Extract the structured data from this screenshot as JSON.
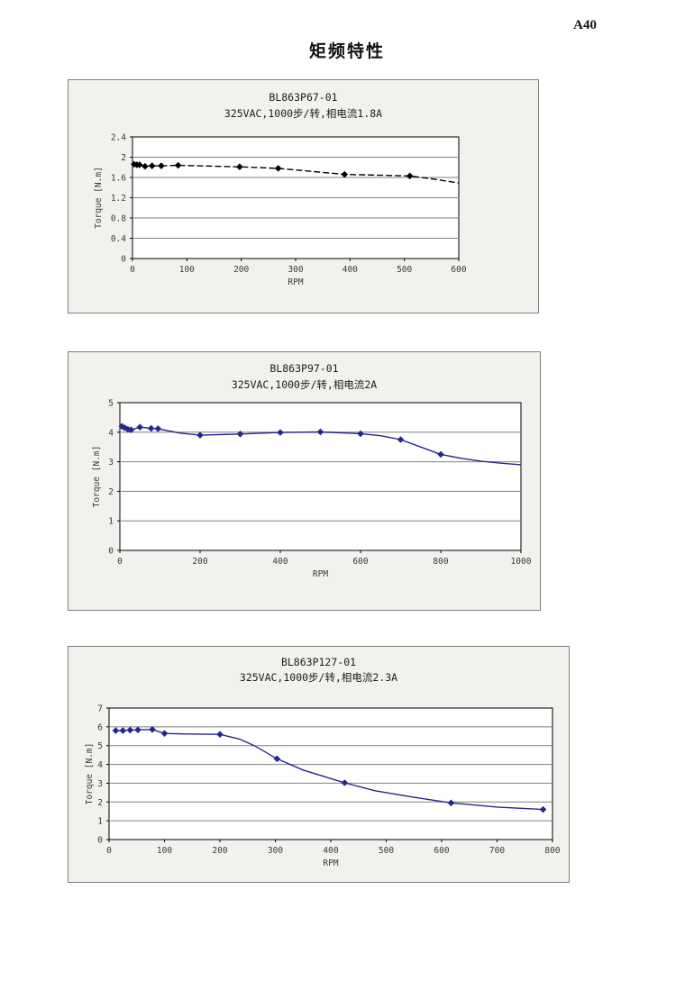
{
  "page": {
    "page_number": "A40",
    "title": "矩频特性"
  },
  "chart_data": [
    {
      "type": "line",
      "title": "BL863P67-01",
      "subtitle": "325VAC,1000步/转,相电流1.8A",
      "xlabel": "RPM",
      "ylabel": "Torque [N.m]",
      "xlim": [
        0,
        600
      ],
      "ylim": [
        0,
        2.4
      ],
      "xticks": [
        0,
        100,
        200,
        300,
        400,
        500,
        600
      ],
      "xtick_labels": [
        "0",
        "100",
        "200",
        "300",
        "400",
        "500",
        "600"
      ],
      "yticks": [
        0,
        0.4,
        0.8,
        1.2,
        1.6,
        2,
        2.4
      ],
      "ytick_labels": [
        "0",
        "0.4",
        "0.8",
        "1.2",
        "1.6",
        "2",
        "2.4"
      ],
      "grid": true,
      "legend": false,
      "line_color": "#000000",
      "line_dash": "7 3",
      "marker": "diamond",
      "points": [
        [
          3,
          1.86
        ],
        [
          8,
          1.85
        ],
        [
          13,
          1.85
        ],
        [
          23,
          1.82
        ],
        [
          36,
          1.83
        ],
        [
          53,
          1.83
        ],
        [
          84,
          1.84
        ],
        [
          197,
          1.81
        ],
        [
          268,
          1.78
        ],
        [
          390,
          1.66
        ],
        [
          510,
          1.63
        ]
      ],
      "line": [
        [
          3,
          1.86
        ],
        [
          8,
          1.85
        ],
        [
          13,
          1.85
        ],
        [
          23,
          1.82
        ],
        [
          36,
          1.83
        ],
        [
          53,
          1.83
        ],
        [
          84,
          1.84
        ],
        [
          197,
          1.81
        ],
        [
          268,
          1.78
        ],
        [
          390,
          1.66
        ],
        [
          510,
          1.63
        ],
        [
          560,
          1.56
        ],
        [
          600,
          1.49
        ]
      ]
    },
    {
      "type": "line",
      "title": "BL863P97-01",
      "subtitle": "325VAC,1000步/转,相电流2A",
      "xlabel": "RPM",
      "ylabel": "Torque [N.m]",
      "xlim": [
        0,
        1000
      ],
      "ylim": [
        0,
        5
      ],
      "xticks": [
        0,
        200,
        400,
        600,
        800,
        1000
      ],
      "xtick_labels": [
        "0",
        "200",
        "400",
        "600",
        "800",
        "1000"
      ],
      "yticks": [
        0,
        1,
        2,
        3,
        4,
        5
      ],
      "ytick_labels": [
        "0",
        "1",
        "2",
        "3",
        "4",
        "5"
      ],
      "grid": true,
      "legend": false,
      "line_color": "#26268e",
      "line_dash": "",
      "marker": "diamond",
      "points": [
        [
          5,
          4.2
        ],
        [
          12,
          4.15
        ],
        [
          20,
          4.1
        ],
        [
          28,
          4.08
        ],
        [
          50,
          4.17
        ],
        [
          78,
          4.13
        ],
        [
          95,
          4.12
        ],
        [
          200,
          3.9
        ],
        [
          300,
          3.94
        ],
        [
          400,
          3.99
        ],
        [
          500,
          4.01
        ],
        [
          600,
          3.95
        ],
        [
          700,
          3.75
        ],
        [
          800,
          3.25
        ]
      ],
      "line": [
        [
          5,
          4.2
        ],
        [
          12,
          4.15
        ],
        [
          20,
          4.1
        ],
        [
          28,
          4.08
        ],
        [
          50,
          4.17
        ],
        [
          78,
          4.13
        ],
        [
          95,
          4.12
        ],
        [
          150,
          3.97
        ],
        [
          200,
          3.9
        ],
        [
          300,
          3.94
        ],
        [
          400,
          3.99
        ],
        [
          500,
          4.01
        ],
        [
          600,
          3.95
        ],
        [
          650,
          3.88
        ],
        [
          700,
          3.75
        ],
        [
          750,
          3.5
        ],
        [
          800,
          3.25
        ],
        [
          850,
          3.12
        ],
        [
          900,
          3.02
        ],
        [
          950,
          2.95
        ],
        [
          1000,
          2.9
        ]
      ]
    },
    {
      "type": "line",
      "title": "BL863P127-01",
      "subtitle": "325VAC,1000步/转,相电流2.3A",
      "xlabel": "RPM",
      "ylabel": "Torque [N.m]",
      "xlim": [
        0,
        800
      ],
      "ylim": [
        0,
        7
      ],
      "xticks": [
        0,
        100,
        200,
        300,
        400,
        500,
        600,
        700,
        800
      ],
      "xtick_labels": [
        "0",
        "100",
        "200",
        "300",
        "400",
        "500",
        "600",
        "700",
        "800"
      ],
      "yticks": [
        0,
        1,
        2,
        3,
        4,
        5,
        6,
        7
      ],
      "ytick_labels": [
        "0",
        "1",
        "2",
        "3",
        "4",
        "5",
        "6",
        "7"
      ],
      "grid": true,
      "legend": false,
      "line_color": "#26268e",
      "line_dash": "",
      "marker": "diamond",
      "points": [
        [
          12,
          5.8
        ],
        [
          25,
          5.8
        ],
        [
          38,
          5.83
        ],
        [
          52,
          5.84
        ],
        [
          78,
          5.86
        ],
        [
          100,
          5.65
        ],
        [
          200,
          5.6
        ],
        [
          303,
          4.3
        ],
        [
          425,
          3.02
        ],
        [
          617,
          1.95
        ],
        [
          783,
          1.6
        ]
      ],
      "line": [
        [
          12,
          5.8
        ],
        [
          25,
          5.8
        ],
        [
          38,
          5.83
        ],
        [
          52,
          5.84
        ],
        [
          78,
          5.86
        ],
        [
          100,
          5.65
        ],
        [
          140,
          5.62
        ],
        [
          200,
          5.6
        ],
        [
          235,
          5.35
        ],
        [
          262,
          5.0
        ],
        [
          303,
          4.3
        ],
        [
          350,
          3.7
        ],
        [
          425,
          3.02
        ],
        [
          480,
          2.6
        ],
        [
          550,
          2.25
        ],
        [
          617,
          1.95
        ],
        [
          700,
          1.73
        ],
        [
          783,
          1.6
        ]
      ]
    }
  ]
}
